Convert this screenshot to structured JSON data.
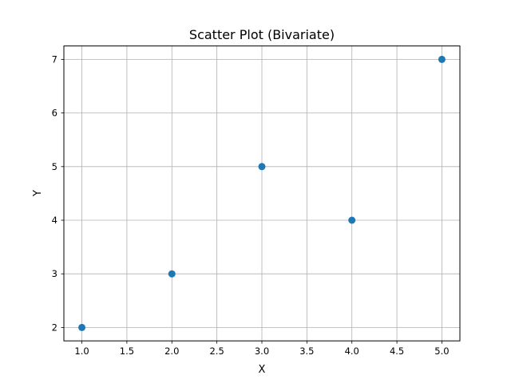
{
  "chart_data": {
    "type": "scatter",
    "title": "Scatter Plot (Bivariate)",
    "xlabel": "X",
    "ylabel": "Y",
    "x": [
      1,
      2,
      3,
      4,
      5
    ],
    "y": [
      2,
      3,
      5,
      4,
      7
    ],
    "xlim": [
      0.8,
      5.2
    ],
    "ylim": [
      1.75,
      7.25
    ],
    "xticks": [
      "1.0",
      "1.5",
      "2.0",
      "2.5",
      "3.0",
      "3.5",
      "4.0",
      "4.5",
      "5.0"
    ],
    "yticks": [
      "2",
      "3",
      "4",
      "5",
      "6",
      "7"
    ],
    "grid": true,
    "marker_color": "#1f77b4",
    "grid_color": "#b0b0b0"
  }
}
